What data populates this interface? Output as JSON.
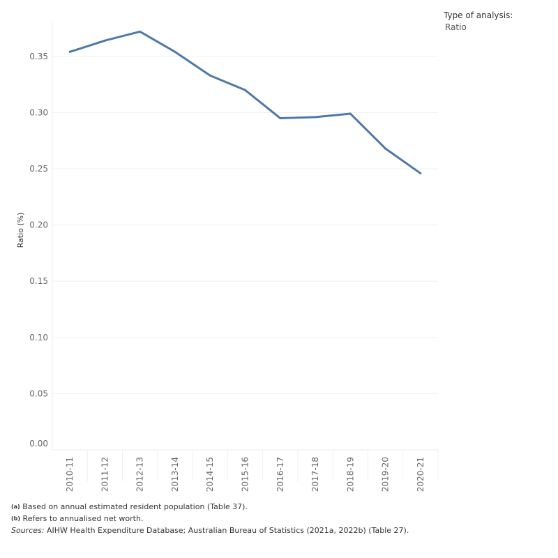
{
  "legend": {
    "title": "Type of analysis:",
    "value": "Ratio"
  },
  "footnotes": {
    "a_mark": "(a)",
    "a": "Based on annual estimated resident population (Table 37).",
    "b_mark": "(b)",
    "b": "Refers to annualised net worth.",
    "sources_label": "Sources:",
    "sources": "AIHW Health Expenditure Database; Australian Bureau of Statistics (2021a, 2022b) (Table 27)."
  },
  "chart_data": {
    "type": "line",
    "title": "",
    "xlabel": "",
    "ylabel": "Ratio (%)",
    "ylim": [
      0,
      0.38
    ],
    "yticks": [
      0,
      0.05,
      0.1,
      0.15,
      0.2,
      0.25,
      0.3,
      0.35
    ],
    "ytick_labels": [
      "0.00",
      "0.05",
      "0.10",
      "0.15",
      "0.20",
      "0.25",
      "0.30",
      "0.35"
    ],
    "grid": true,
    "line_color": "#4e79a7",
    "categories": [
      "2010-11",
      "2011-12",
      "2012-13",
      "2013-14",
      "2014-15",
      "2015-16",
      "2016-17",
      "2017-18",
      "2018-19",
      "2019-20",
      "2020-21"
    ],
    "series": [
      {
        "name": "Ratio",
        "values": [
          0.354,
          0.364,
          0.372,
          0.354,
          0.333,
          0.32,
          0.295,
          0.296,
          0.299,
          0.268,
          0.246
        ]
      }
    ]
  }
}
